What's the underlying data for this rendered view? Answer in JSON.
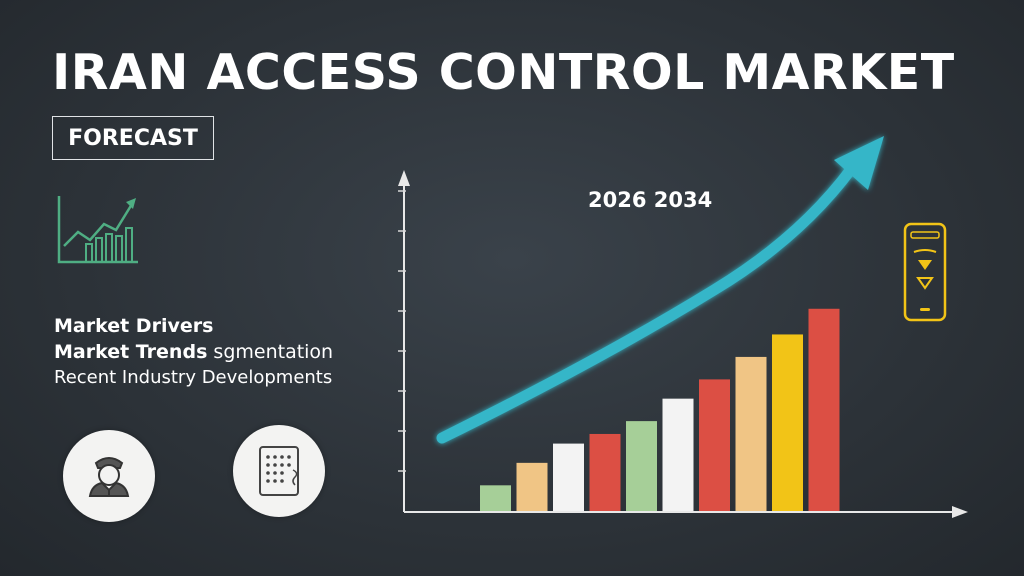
{
  "header": {
    "title": "IRAN ACCESS CONTROL MARKET",
    "badge": "FORECAST"
  },
  "topics": {
    "line1": "Market Drivers",
    "line2_bold": "Market  Trends",
    "line2_rest": " sgmentation",
    "line3": "Recent  Industry  Developments"
  },
  "icons": {
    "growth": "growth-chart-icon",
    "user": "security-guard-icon",
    "keypad": "keypad-icon",
    "device": "mobile-access-icon"
  },
  "chart_data": {
    "type": "bar",
    "title": "",
    "xlabel": "",
    "ylabel": "",
    "annotation": "2026  2034",
    "ylim": [
      0,
      10
    ],
    "grid": false,
    "values": [
      0.8,
      1.5,
      2.1,
      2.4,
      2.8,
      3.5,
      4.1,
      4.8,
      5.5,
      6.3
    ],
    "colors": [
      "#a6cf98",
      "#f0c585",
      "#f3f3f3",
      "#dc4f44",
      "#a6cf98",
      "#f3f3f3",
      "#dc4f44",
      "#f0c585",
      "#f2c417",
      "#dc4f44"
    ],
    "trend_color": "#35b6c8"
  }
}
